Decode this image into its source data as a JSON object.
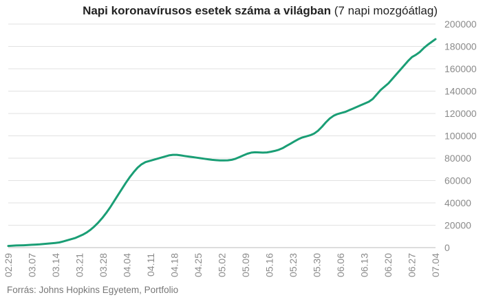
{
  "chart_data": {
    "type": "line",
    "title": "Napi koronavírusos esetek száma a világban",
    "subtitle": "(7 napi mozgóátlag)",
    "source": "Forrás: Johns Hopkins Egyetem, Portfolio",
    "xlabel": "",
    "ylabel": "",
    "ylim": [
      0,
      200000
    ],
    "yticks": [
      "0",
      "20000",
      "40000",
      "60000",
      "80000",
      "100000",
      "120000",
      "140000",
      "160000",
      "180000",
      "200000"
    ],
    "xticks": [
      "02.29",
      "03.07",
      "03.14",
      "03.21",
      "03.28",
      "04.04",
      "04.11",
      "04.18",
      "04.25",
      "05.02",
      "05.09",
      "05.16",
      "05.23",
      "05.30",
      "06.06",
      "06.13",
      "06.20",
      "06.27",
      "07.04"
    ],
    "grid": "horizontal",
    "legend": "none",
    "line_color": "#1a9e75",
    "series": [
      {
        "x_start": "02.29",
        "x_step": "1 nap",
        "values": [
          1500,
          1700,
          1900,
          2000,
          2100,
          2300,
          2500,
          2700,
          2900,
          3200,
          3500,
          3800,
          4200,
          4600,
          5500,
          6500,
          7500,
          8500,
          10000,
          11500,
          13500,
          16000,
          19000,
          22500,
          26500,
          31000,
          36000,
          41500,
          47000,
          52500,
          58000,
          63000,
          67500,
          71500,
          74500,
          76500,
          77500,
          78500,
          79500,
          80500,
          81500,
          82500,
          83000,
          83000,
          82500,
          82000,
          81500,
          81000,
          80500,
          80000,
          79500,
          79000,
          78500,
          78200,
          78000,
          78000,
          78100,
          78500,
          79500,
          81000,
          82500,
          84000,
          85000,
          85300,
          85200,
          85000,
          85200,
          85800,
          86500,
          87500,
          89000,
          91000,
          93000,
          95000,
          97000,
          98500,
          99500,
          100500,
          102000,
          104500,
          108000,
          112000,
          115500,
          118000,
          119500,
          120500,
          121500,
          123000,
          124500,
          126000,
          127500,
          129000,
          130500,
          133000,
          137000,
          141000,
          144000,
          147000,
          151000,
          155000,
          159000,
          163000,
          167000,
          170500,
          172500,
          175000,
          178500,
          181500,
          184000,
          186500
        ]
      }
    ]
  }
}
